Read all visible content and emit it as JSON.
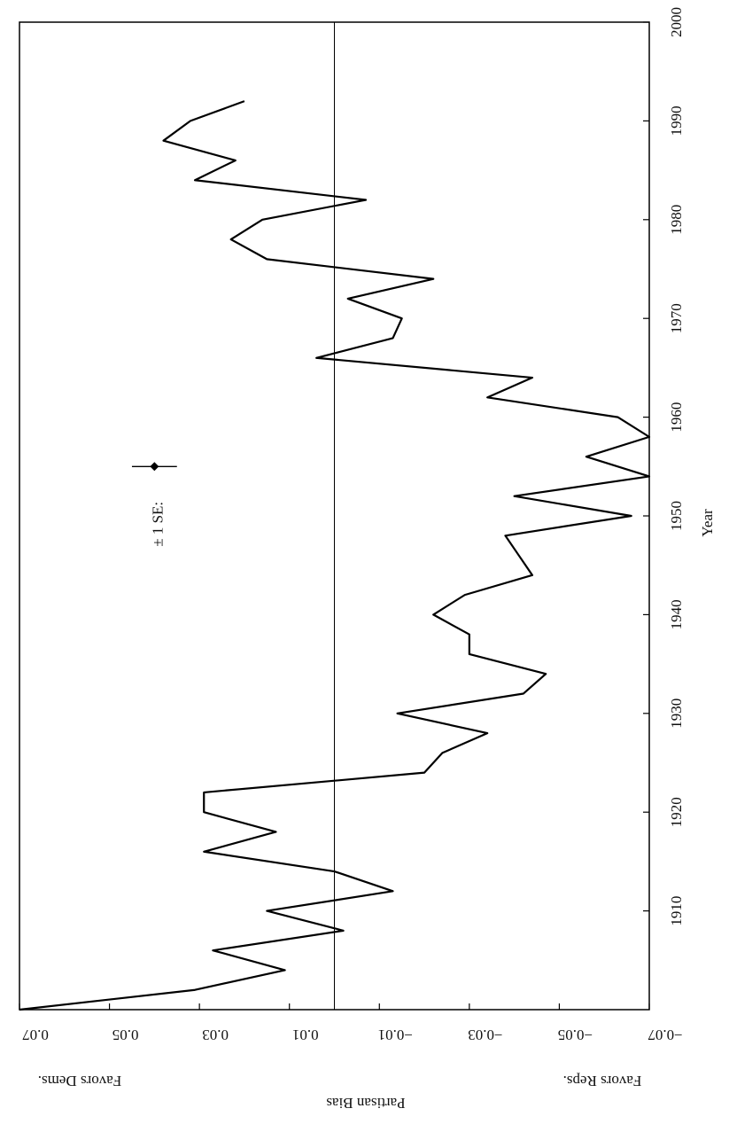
{
  "chart_data": {
    "type": "line",
    "x_label": "Year",
    "y_label": "Partisan Bias",
    "y_top_label": "Favors Dems.",
    "y_bottom_label": "Favors Reps.",
    "x": [
      1900,
      1902,
      1904,
      1906,
      1908,
      1910,
      1912,
      1914,
      1916,
      1918,
      1920,
      1922,
      1924,
      1926,
      1928,
      1930,
      1932,
      1934,
      1936,
      1938,
      1940,
      1942,
      1944,
      1946,
      1948,
      1950,
      1952,
      1954,
      1956,
      1958,
      1960,
      1962,
      1964,
      1966,
      1968,
      1970,
      1972,
      1974,
      1976,
      1978,
      1980,
      1982,
      1984,
      1986,
      1988,
      1990,
      1992
    ],
    "series": [
      {
        "color": "#000000",
        "values": [
          0.07,
          0.031,
          0.011,
          0.027,
          -0.002,
          0.015,
          -0.013,
          0.0,
          0.029,
          0.013,
          0.029,
          0.029,
          -0.02,
          -0.024,
          -0.034,
          -0.014,
          -0.042,
          -0.047,
          -0.03,
          -0.03,
          -0.022,
          -0.029,
          -0.044,
          -0.041,
          -0.038,
          -0.066,
          -0.04,
          -0.07,
          -0.056,
          -0.07,
          -0.063,
          -0.034,
          -0.044,
          0.004,
          -0.013,
          -0.015,
          -0.003,
          -0.022,
          0.015,
          0.023,
          0.016,
          -0.007,
          0.031,
          0.022,
          0.038,
          0.032,
          0.02
        ]
      }
    ],
    "xlim": [
      1900,
      2000
    ],
    "xticks": [
      1910,
      1920,
      1930,
      1940,
      1950,
      1960,
      1970,
      1980,
      1990,
      2000
    ],
    "ylim": [
      -0.07,
      0.07
    ],
    "yticks": [
      0.07,
      0.05,
      0.03,
      0.01,
      {
        "value": -0.01,
        "label": "−0.01"
      },
      {
        "value": -0.03,
        "label": "−0.03"
      },
      {
        "value": -0.05,
        "label": "−0.05"
      },
      {
        "value": -0.07,
        "label": "−0.07"
      }
    ],
    "reference_line": 0,
    "se_marker": {
      "label": "± 1 SE:",
      "x": 1955,
      "y": 0.04,
      "error": 0.005
    }
  }
}
